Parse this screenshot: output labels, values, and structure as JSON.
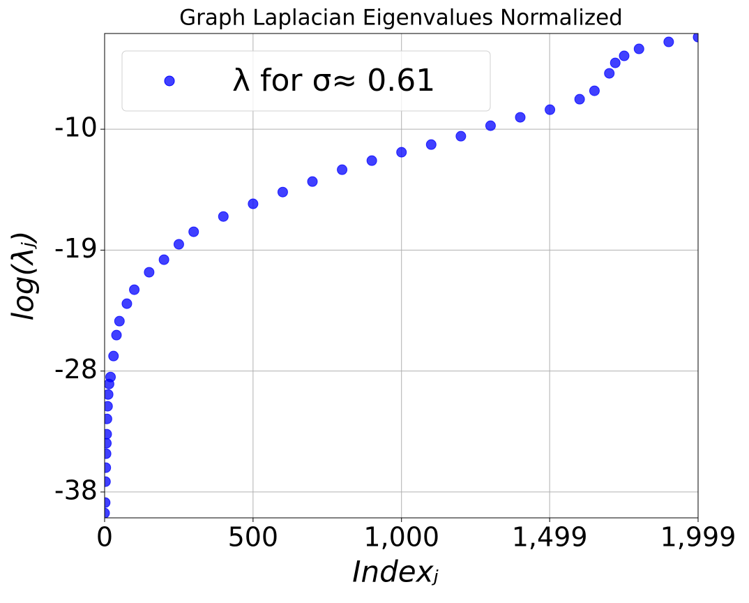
{
  "chart_data": {
    "type": "scatter",
    "title": "Graph Laplacian Eigenvalues Normalized",
    "x_label": "Indexⱼ",
    "y_label": "log(λⱼ)",
    "xlim": [
      0,
      1999
    ],
    "ylim": [
      -39.65,
      -2.2
    ],
    "xticks": [
      0,
      500,
      {
        "value": 1000,
        "label": "1,000"
      },
      {
        "value": 1499,
        "label": "1,499"
      },
      {
        "value": 1999,
        "label": "1,999"
      }
    ],
    "yticks": [
      {
        "value": -9.6,
        "label": "-10"
      },
      {
        "value": -18.95,
        "label": "-19"
      },
      {
        "value": -28.3,
        "label": "-28"
      },
      {
        "value": -37.65,
        "label": "-38"
      }
    ],
    "grid": true,
    "legend_position": "upper left",
    "series": [
      {
        "name": "λ for σ≈ 0.61",
        "color": "#0000ff",
        "x": [
          0,
          2,
          3,
          4,
          5,
          6,
          7,
          8,
          10,
          12,
          15,
          20,
          30,
          40,
          50,
          75,
          100,
          150,
          200,
          250,
          300,
          400,
          500,
          600,
          700,
          800,
          900,
          1000,
          1100,
          1200,
          1300,
          1400,
          1500,
          1600,
          1650,
          1700,
          1720,
          1750,
          1800,
          1900,
          1999
        ],
        "values": [
          -39.28,
          -38.47,
          -36.85,
          -35.77,
          -34.69,
          -33.88,
          -33.18,
          -32.0,
          -31.02,
          -30.11,
          -29.3,
          -28.76,
          -27.14,
          -25.52,
          -24.44,
          -23.09,
          -22.01,
          -20.66,
          -19.69,
          -18.5,
          -17.53,
          -16.35,
          -15.37,
          -14.46,
          -13.65,
          -12.73,
          -12.03,
          -11.38,
          -10.79,
          -10.14,
          -9.33,
          -8.68,
          -8.09,
          -7.28,
          -6.63,
          -5.28,
          -4.47,
          -3.93,
          -3.39,
          -2.85,
          -2.48
        ]
      }
    ]
  }
}
